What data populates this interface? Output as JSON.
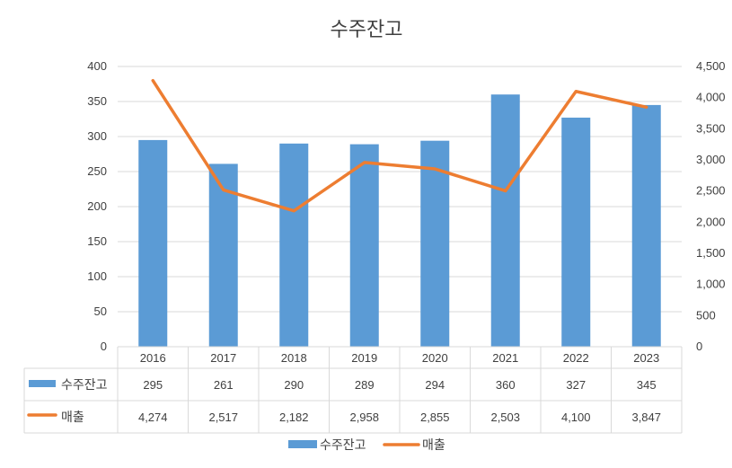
{
  "chart_data": {
    "type": "bar",
    "title": "수주잔고",
    "categories": [
      "2016",
      "2017",
      "2018",
      "2019",
      "2020",
      "2021",
      "2022",
      "2023"
    ],
    "series": [
      {
        "name": "수주잔고",
        "type": "bar",
        "axis": "left",
        "color": "#5B9BD5",
        "values": [
          295,
          261,
          290,
          289,
          294,
          360,
          327,
          345
        ],
        "table_values": [
          "295",
          "261",
          "290",
          "289",
          "294",
          "360",
          "327",
          "345"
        ]
      },
      {
        "name": "매출",
        "type": "line",
        "axis": "right",
        "color": "#ED7D31",
        "values": [
          4274,
          2517,
          2182,
          2958,
          2855,
          2503,
          4100,
          3847
        ],
        "table_values": [
          "4,274",
          "2,517",
          "2,182",
          "2,958",
          "2,855",
          "2,503",
          "4,100",
          "3,847"
        ]
      }
    ],
    "y_left": {
      "min": 0,
      "max": 400,
      "ticks": [
        "0",
        "50",
        "100",
        "150",
        "200",
        "250",
        "300",
        "350",
        "400"
      ]
    },
    "y_right": {
      "min": 0,
      "max": 4500,
      "ticks": [
        "0",
        "500",
        "1,000",
        "1,500",
        "2,000",
        "2,500",
        "3,000",
        "3,500",
        "4,000",
        "4,500"
      ]
    },
    "grid": true,
    "legend": "bottom",
    "data_table": true
  }
}
